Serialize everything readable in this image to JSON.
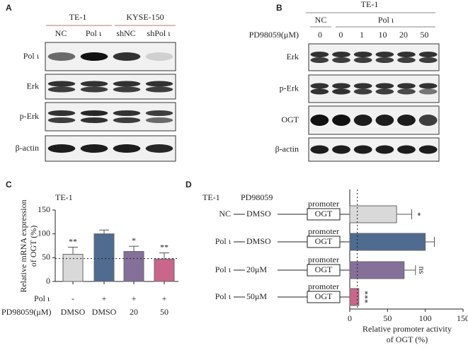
{
  "panel_labels": [
    "A",
    "B",
    "C",
    "D"
  ],
  "blot_a": {
    "groups": [
      "TE-1",
      "KYSE-150"
    ],
    "lanes": [
      "NC",
      "Pol ι",
      "shNC",
      "shPol ι"
    ],
    "rows": [
      "Pol ι",
      "Erk",
      "p-Erk",
      "β-actin"
    ]
  },
  "blot_b": {
    "group": "TE-1",
    "lane_groups": [
      "NC",
      "Pol ι"
    ],
    "dose_label": "PD98059(μM)",
    "doses": [
      0,
      0,
      1,
      10,
      20,
      50
    ],
    "rows": [
      "Erk",
      "p-Erk",
      "OGT",
      "β-actin"
    ]
  },
  "chart_data": [
    {
      "type": "bar",
      "title": "TE-1",
      "y_label": [
        "Relative mRNA expression",
        "of OGT (%)"
      ],
      "treatments": [
        {
          "name": "Pol ι",
          "values": [
            "-",
            "+",
            "+",
            "+"
          ]
        },
        {
          "name": "PD98059(μM)",
          "values": [
            "DMSO",
            "DMSO",
            "20",
            "50"
          ]
        }
      ],
      "values": [
        57,
        100,
        63,
        47
      ],
      "errors": [
        15,
        8,
        11,
        13
      ],
      "colors": [
        "#d9d9d9",
        "#4f6b8f",
        "#85709a",
        "#c9668a"
      ],
      "significance": [
        "**",
        null,
        "*",
        "**"
      ],
      "reference_line": 48,
      "ylim": [
        0,
        150
      ],
      "yticks": [
        0,
        50,
        100,
        150
      ]
    },
    {
      "type": "hbar",
      "title": [
        "TE-1",
        "PD98059"
      ],
      "groups": [
        "NC",
        "Pol ι",
        "Pol ι",
        "Pol ι"
      ],
      "treatments": [
        "DMSO",
        "DMSO",
        "20μM",
        "50μM"
      ],
      "construct": {
        "label": "promoter",
        "gene": "OGT"
      },
      "values": [
        62,
        100,
        72,
        12
      ],
      "errors": [
        20,
        12,
        15,
        null
      ],
      "colors": [
        "#d9d9d9",
        "#4f6b8f",
        "#85709a",
        "#c9668a"
      ],
      "significance": [
        "*",
        null,
        "ns",
        "***"
      ],
      "reference_line": 10,
      "xlim": [
        0,
        150
      ],
      "xticks": [
        0,
        50,
        100,
        150
      ],
      "x_label": [
        "Relative promoter activity",
        "of OGT (%)"
      ]
    }
  ]
}
